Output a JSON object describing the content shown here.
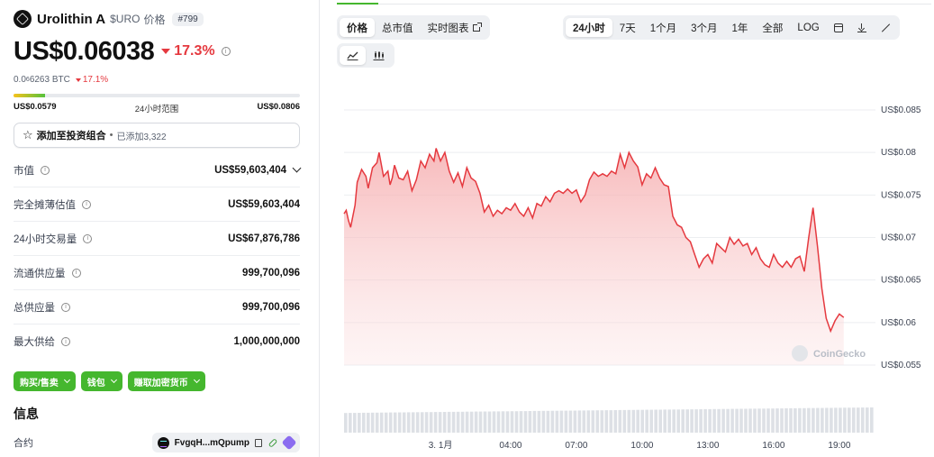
{
  "coin": {
    "name": "Urolithin A",
    "symbol": "$URO",
    "price_word": "价格",
    "rank": "#799",
    "price": "US$0.06038",
    "change_24h": "17.3%",
    "btc_prefix": "0.0",
    "btc_sub": "6",
    "btc_rest": "6263 BTC",
    "btc_change": "17.1%"
  },
  "range": {
    "low": "US$0.0579",
    "label": "24小时范围",
    "high": "US$0.0806",
    "position": 0.11
  },
  "portfolio": {
    "label": "添加至投资组合",
    "dot": "•",
    "count": "已添加3,322"
  },
  "stats": [
    {
      "label": "市值",
      "value": "US$59,603,404",
      "expandable": true
    },
    {
      "label": "完全摊薄估值",
      "value": "US$59,603,404",
      "expandable": false
    },
    {
      "label": "24小时交易量",
      "value": "US$67,876,786",
      "expandable": false
    },
    {
      "label": "流通供应量",
      "value": "999,700,096",
      "expandable": false
    },
    {
      "label": "总供应量",
      "value": "999,700,096",
      "expandable": false
    },
    {
      "label": "最大供给",
      "value": "1,000,000,000",
      "expandable": false
    }
  ],
  "actions": {
    "buy_sell": "购买/售卖",
    "wallet": "钱包",
    "earn": "赚取加密货币"
  },
  "info": {
    "title": "信息",
    "contract_label": "合约",
    "contract_address": "FvgqH...mQpump"
  },
  "chart_tabs": {
    "price": "价格",
    "market_cap": "总市值",
    "live_chart": "实时图表"
  },
  "ranges": {
    "d1": "24小时",
    "d7": "7天",
    "m1": "1个月",
    "m3": "3个月",
    "y1": "1年",
    "all": "全部",
    "log": "LOG"
  },
  "chart_data": {
    "type": "area",
    "ytick_labels": [
      "US$0.085",
      "US$0.08",
      "US$0.075",
      "US$0.07",
      "US$0.065",
      "US$0.06",
      "US$0.055"
    ],
    "yticks": [
      0.085,
      0.08,
      0.075,
      0.07,
      0.065,
      0.06,
      0.055
    ],
    "ylim": [
      0.055,
      0.085
    ],
    "xtick_labels": [
      "3. 1月",
      "04:00",
      "07:00",
      "10:00",
      "13:00",
      "16:00",
      "19:00"
    ],
    "xtick_hours": [
      0.8,
      4,
      7,
      10,
      13,
      16,
      19
    ],
    "xlim": [
      -3.6,
      20.4
    ],
    "grid": true,
    "line_color": "#e5393f",
    "watermark": "CoinGecko",
    "price_hours": [
      -3.6,
      -3.5,
      -3.4,
      -3.3,
      -3.1,
      -3.0,
      -2.8,
      -2.6,
      -2.5,
      -2.3,
      -2.1,
      -2.0,
      -1.8,
      -1.6,
      -1.5,
      -1.4,
      -1.3,
      -1.1,
      -0.9,
      -0.7,
      -0.5,
      -0.3,
      -0.1,
      0.1,
      0.3,
      0.5,
      0.6,
      0.8,
      1.0,
      1.2,
      1.4,
      1.6,
      1.8,
      2.0,
      2.2,
      2.4,
      2.6,
      2.8,
      3.0,
      3.2,
      3.4,
      3.6,
      3.8,
      4.0,
      4.2,
      4.4,
      4.6,
      4.8,
      5.0,
      5.2,
      5.4,
      5.6,
      5.8,
      6.0,
      6.2,
      6.4,
      6.6,
      6.8,
      7.0,
      7.2,
      7.4,
      7.6,
      7.8,
      8.0,
      8.2,
      8.4,
      8.6,
      8.8,
      9.0,
      9.2,
      9.4,
      9.6,
      9.8,
      10.0,
      10.2,
      10.4,
      10.6,
      10.8,
      11.0,
      11.2,
      11.4,
      11.6,
      11.8,
      12.0,
      12.2,
      12.4,
      12.6,
      12.8,
      13.0,
      13.2,
      13.4,
      13.6,
      13.8,
      14.0,
      14.2,
      14.4,
      14.6,
      14.8,
      15.0,
      15.2,
      15.4,
      15.6,
      15.8,
      16.0,
      16.2,
      16.4,
      16.6,
      16.8,
      17.0,
      17.2,
      17.4,
      17.6,
      17.8,
      18.0,
      18.2,
      18.4,
      18.6,
      18.8,
      19.0,
      19.2
    ],
    "prices": [
      0.0728,
      0.0732,
      0.072,
      0.0712,
      0.0738,
      0.0765,
      0.078,
      0.0772,
      0.0758,
      0.0782,
      0.0788,
      0.08,
      0.0772,
      0.0778,
      0.0762,
      0.077,
      0.0785,
      0.077,
      0.0768,
      0.0778,
      0.0755,
      0.0768,
      0.079,
      0.0782,
      0.0798,
      0.079,
      0.0805,
      0.079,
      0.08,
      0.0778,
      0.0765,
      0.0776,
      0.076,
      0.0782,
      0.077,
      0.0766,
      0.0752,
      0.073,
      0.0738,
      0.0725,
      0.0732,
      0.0728,
      0.0735,
      0.0732,
      0.074,
      0.073,
      0.0725,
      0.0735,
      0.0723,
      0.074,
      0.0737,
      0.0748,
      0.0742,
      0.0752,
      0.0755,
      0.0752,
      0.0757,
      0.0752,
      0.0756,
      0.0742,
      0.075,
      0.0768,
      0.0777,
      0.0772,
      0.0775,
      0.0772,
      0.0778,
      0.0775,
      0.0798,
      0.0782,
      0.08,
      0.079,
      0.0783,
      0.0762,
      0.0775,
      0.077,
      0.0782,
      0.077,
      0.0762,
      0.076,
      0.0725,
      0.0715,
      0.0712,
      0.07,
      0.0695,
      0.068,
      0.0665,
      0.0675,
      0.068,
      0.067,
      0.0693,
      0.0688,
      0.0683,
      0.07,
      0.0692,
      0.0698,
      0.069,
      0.0693,
      0.068,
      0.0688,
      0.0675,
      0.0668,
      0.0665,
      0.068,
      0.067,
      0.0665,
      0.0672,
      0.0665,
      0.0675,
      0.0678,
      0.066,
      0.07,
      0.0735,
      0.069,
      0.064,
      0.0605,
      0.059,
      0.0602,
      0.061,
      0.0606
    ]
  }
}
